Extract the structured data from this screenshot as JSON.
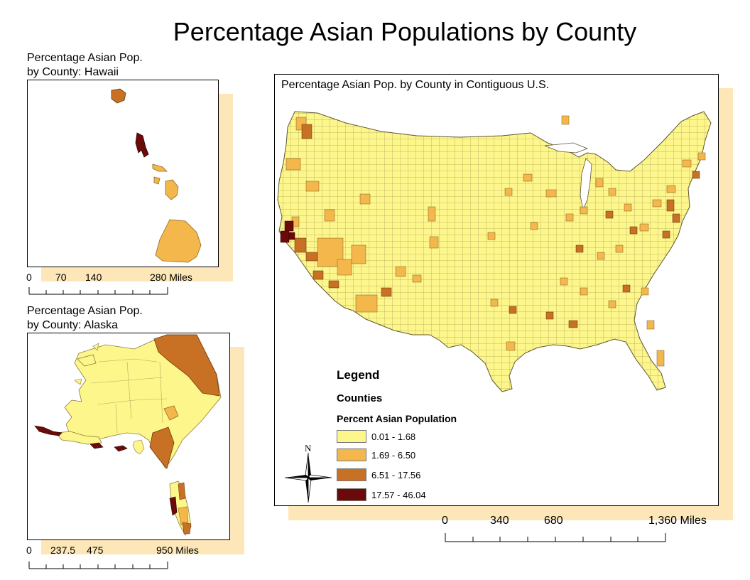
{
  "title": "Percentage Asian Populations by County",
  "hawaii": {
    "title_line1": "Percentage Asian Pop.",
    "title_line2": "by County: Hawaii",
    "scale": [
      "0",
      "70",
      "140",
      "280 Miles"
    ]
  },
  "alaska": {
    "title_line1": "Percentage Asian Pop.",
    "title_line2": "by County: Alaska",
    "scale": [
      "0",
      "237.5",
      "475",
      "950 Miles"
    ]
  },
  "main_map": {
    "title": "Percentage Asian Pop. by County in Contiguous U.S.",
    "scale": [
      "0",
      "340",
      "680",
      "1,360 Miles"
    ],
    "north_label": "N"
  },
  "legend": {
    "title": "Legend",
    "layer": "Counties",
    "field": "Percent Asian Population",
    "classes": [
      {
        "label": "0.01 - 1.68",
        "color": "#fdf68a"
      },
      {
        "label": "1.69 - 6.50",
        "color": "#f4b74c"
      },
      {
        "label": "6.51 - 17.56",
        "color": "#c87024"
      },
      {
        "label": "17.57 - 46.04",
        "color": "#6b0a08"
      }
    ]
  },
  "colors": {
    "class1": "#fdf68a",
    "class2": "#f4b74c",
    "class3": "#c87024",
    "class4": "#6b0a08",
    "shadow": "#fde7b8"
  }
}
